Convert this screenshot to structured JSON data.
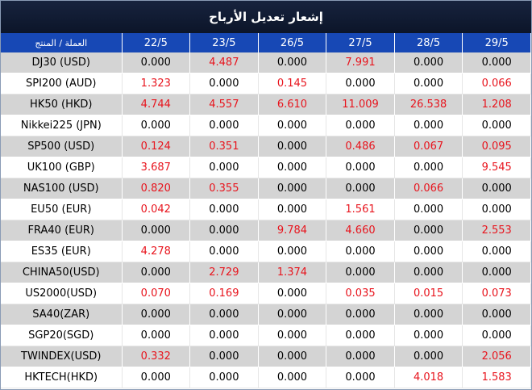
{
  "title": "إشعار تعديل الأرباح",
  "header": {
    "label": "العملة / المنتج",
    "dates": [
      "22/5",
      "23/5",
      "26/5",
      "27/5",
      "28/5",
      "29/5"
    ]
  },
  "colors": {
    "title_bg": "#0f1a33",
    "header_bg": "#1748b5",
    "highlight_value": "#e8141d",
    "odd_row": "#d4d4d4"
  },
  "rows": [
    {
      "product": "DJ30 (USD)",
      "values": [
        "0.000",
        "4.487",
        "0.000",
        "7.991",
        "0.000",
        "0.000"
      ],
      "red": [
        false,
        true,
        false,
        true,
        false,
        false
      ]
    },
    {
      "product": "SPI200 (AUD)",
      "values": [
        "1.323",
        "0.000",
        "0.145",
        "0.000",
        "0.000",
        "0.066"
      ],
      "red": [
        true,
        false,
        true,
        false,
        false,
        true
      ]
    },
    {
      "product": "HK50 (HKD)",
      "values": [
        "4.744",
        "4.557",
        "6.610",
        "11.009",
        "26.538",
        "1.208"
      ],
      "red": [
        true,
        true,
        true,
        true,
        true,
        true
      ]
    },
    {
      "product": "Nikkei225 (JPN)",
      "values": [
        "0.000",
        "0.000",
        "0.000",
        "0.000",
        "0.000",
        "0.000"
      ],
      "red": [
        false,
        false,
        false,
        false,
        false,
        false
      ]
    },
    {
      "product": "SP500 (USD)",
      "values": [
        "0.124",
        "0.351",
        "0.000",
        "0.486",
        "0.067",
        "0.095"
      ],
      "red": [
        true,
        true,
        false,
        true,
        true,
        true
      ]
    },
    {
      "product": "UK100 (GBP)",
      "values": [
        "3.687",
        "0.000",
        "0.000",
        "0.000",
        "0.000",
        "9.545"
      ],
      "red": [
        true,
        false,
        false,
        false,
        false,
        true
      ]
    },
    {
      "product": "NAS100 (USD)",
      "values": [
        "0.820",
        "0.355",
        "0.000",
        "0.000",
        "0.066",
        "0.000"
      ],
      "red": [
        true,
        true,
        false,
        false,
        true,
        false
      ]
    },
    {
      "product": "EU50 (EUR)",
      "values": [
        "0.042",
        "0.000",
        "0.000",
        "1.561",
        "0.000",
        "0.000"
      ],
      "red": [
        true,
        false,
        false,
        true,
        false,
        false
      ]
    },
    {
      "product": "FRA40 (EUR)",
      "values": [
        "0.000",
        "0.000",
        "9.784",
        "4.660",
        "0.000",
        "2.553"
      ],
      "red": [
        false,
        false,
        true,
        true,
        false,
        true
      ]
    },
    {
      "product": "ES35 (EUR)",
      "values": [
        "4.278",
        "0.000",
        "0.000",
        "0.000",
        "0.000",
        "0.000"
      ],
      "red": [
        true,
        false,
        false,
        false,
        false,
        false
      ]
    },
    {
      "product": "CHINA50(USD)",
      "values": [
        "0.000",
        "2.729",
        "1.374",
        "0.000",
        "0.000",
        "0.000"
      ],
      "red": [
        false,
        true,
        true,
        false,
        false,
        false
      ]
    },
    {
      "product": "US2000(USD)",
      "values": [
        "0.070",
        "0.169",
        "0.000",
        "0.035",
        "0.015",
        "0.073"
      ],
      "red": [
        true,
        true,
        false,
        true,
        true,
        true
      ]
    },
    {
      "product": "SA40(ZAR)",
      "values": [
        "0.000",
        "0.000",
        "0.000",
        "0.000",
        "0.000",
        "0.000"
      ],
      "red": [
        false,
        false,
        false,
        false,
        false,
        false
      ]
    },
    {
      "product": "SGP20(SGD)",
      "values": [
        "0.000",
        "0.000",
        "0.000",
        "0.000",
        "0.000",
        "0.000"
      ],
      "red": [
        false,
        false,
        false,
        false,
        false,
        false
      ]
    },
    {
      "product": "TWINDEX(USD)",
      "values": [
        "0.332",
        "0.000",
        "0.000",
        "0.000",
        "0.000",
        "2.056"
      ],
      "red": [
        true,
        false,
        false,
        false,
        false,
        true
      ]
    },
    {
      "product": "HKTECH(HKD)",
      "values": [
        "0.000",
        "0.000",
        "0.000",
        "0.000",
        "4.018",
        "1.583"
      ],
      "red": [
        false,
        false,
        false,
        false,
        true,
        true
      ]
    }
  ]
}
